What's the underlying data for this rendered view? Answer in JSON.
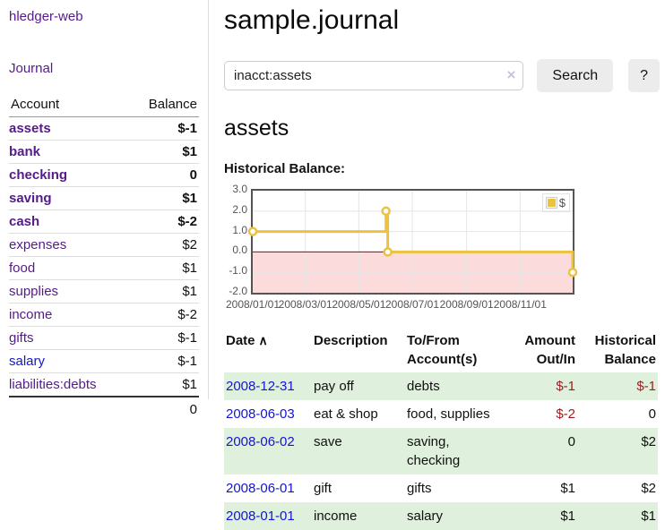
{
  "sidebar": {
    "app_title": "hledger-web",
    "journal_link": "Journal",
    "accounts_table": {
      "account_header": "Account",
      "balance_header": "Balance",
      "rows": [
        {
          "name": "assets",
          "balance": "$-1",
          "depth": 1,
          "in_filter": true
        },
        {
          "name": "bank",
          "balance": "$1",
          "depth": 2,
          "in_filter": true
        },
        {
          "name": "checking",
          "balance": "0",
          "depth": 3,
          "in_filter": true
        },
        {
          "name": "saving",
          "balance": "$1",
          "depth": 3,
          "in_filter": true
        },
        {
          "name": "cash",
          "balance": "$-2",
          "depth": 2,
          "in_filter": true
        },
        {
          "name": "expenses",
          "balance": "$2",
          "depth": 1,
          "in_filter": false
        },
        {
          "name": "food",
          "balance": "$1",
          "depth": 2,
          "in_filter": false
        },
        {
          "name": "supplies",
          "balance": "$1",
          "depth": 2,
          "in_filter": false
        },
        {
          "name": "income",
          "balance": "$-2",
          "depth": 1,
          "in_filter": false
        },
        {
          "name": "gifts",
          "balance": "$-1",
          "depth": 2,
          "in_filter": false
        },
        {
          "name": "salary",
          "balance": "$-1",
          "depth": 2,
          "in_filter": false,
          "unvisited": true
        },
        {
          "name": "liabilities:debts",
          "balance": "$1",
          "depth": 1,
          "in_filter": false
        }
      ],
      "total": "0"
    }
  },
  "main": {
    "title": "sample.journal",
    "search": {
      "value": "inacct:assets",
      "clear_icon": "×",
      "search_button": "Search",
      "help_button": "?"
    },
    "account_heading": "assets"
  },
  "chart_data": {
    "type": "line",
    "step": true,
    "title": "Historical Balance:",
    "series": [
      {
        "name": "$",
        "color": "#edc240",
        "points": [
          [
            "2008-01-01",
            1
          ],
          [
            "2008-06-01",
            2
          ],
          [
            "2008-06-03",
            0
          ],
          [
            "2008-12-31",
            -1
          ]
        ]
      }
    ],
    "xlim": [
      "2008-01-01",
      "2008-12-31"
    ],
    "ylim": [
      -2,
      3
    ],
    "x_ticks": [
      "2008/01/01",
      "2008/03/01",
      "2008/05/01",
      "2008/07/01",
      "2008/09/01",
      "2008/11/01"
    ],
    "y_ticks": [
      "3.0",
      "2.0",
      "1.0",
      "0.0",
      "-1.0",
      "-2.0"
    ],
    "legend": {
      "label": "$",
      "position": "top-right",
      "swatch_color": "#edc240"
    },
    "grid": true,
    "grid_color": "#e5e5e5",
    "zero_line_color": "#aa0000",
    "negative_region_color": "#fbdbdb",
    "border_color": "#545454"
  },
  "register_table": {
    "headers": {
      "date": "Date",
      "sort_icon": "∧",
      "description": "Description",
      "accounts": "To/From Account(s)",
      "amount": "Amount Out/In",
      "balance": "Historical Balance"
    },
    "rows": [
      {
        "date": "2008-12-31",
        "description": "pay off",
        "accounts": "debts",
        "amount": "$-1",
        "balance": "$-1",
        "shaded": true
      },
      {
        "date": "2008-06-03",
        "description": "eat & shop",
        "accounts": "food, supplies",
        "amount": "$-2",
        "balance": "0",
        "shaded": false
      },
      {
        "date": "2008-06-02",
        "description": "save",
        "accounts": "saving, checking",
        "amount": "0",
        "balance": "$2",
        "shaded": true
      },
      {
        "date": "2008-06-01",
        "description": "gift",
        "accounts": "gifts",
        "amount": "$1",
        "balance": "$2",
        "shaded": false
      },
      {
        "date": "2008-01-01",
        "description": "income",
        "accounts": "salary",
        "amount": "$1",
        "balance": "$1",
        "shaded": true
      }
    ]
  }
}
